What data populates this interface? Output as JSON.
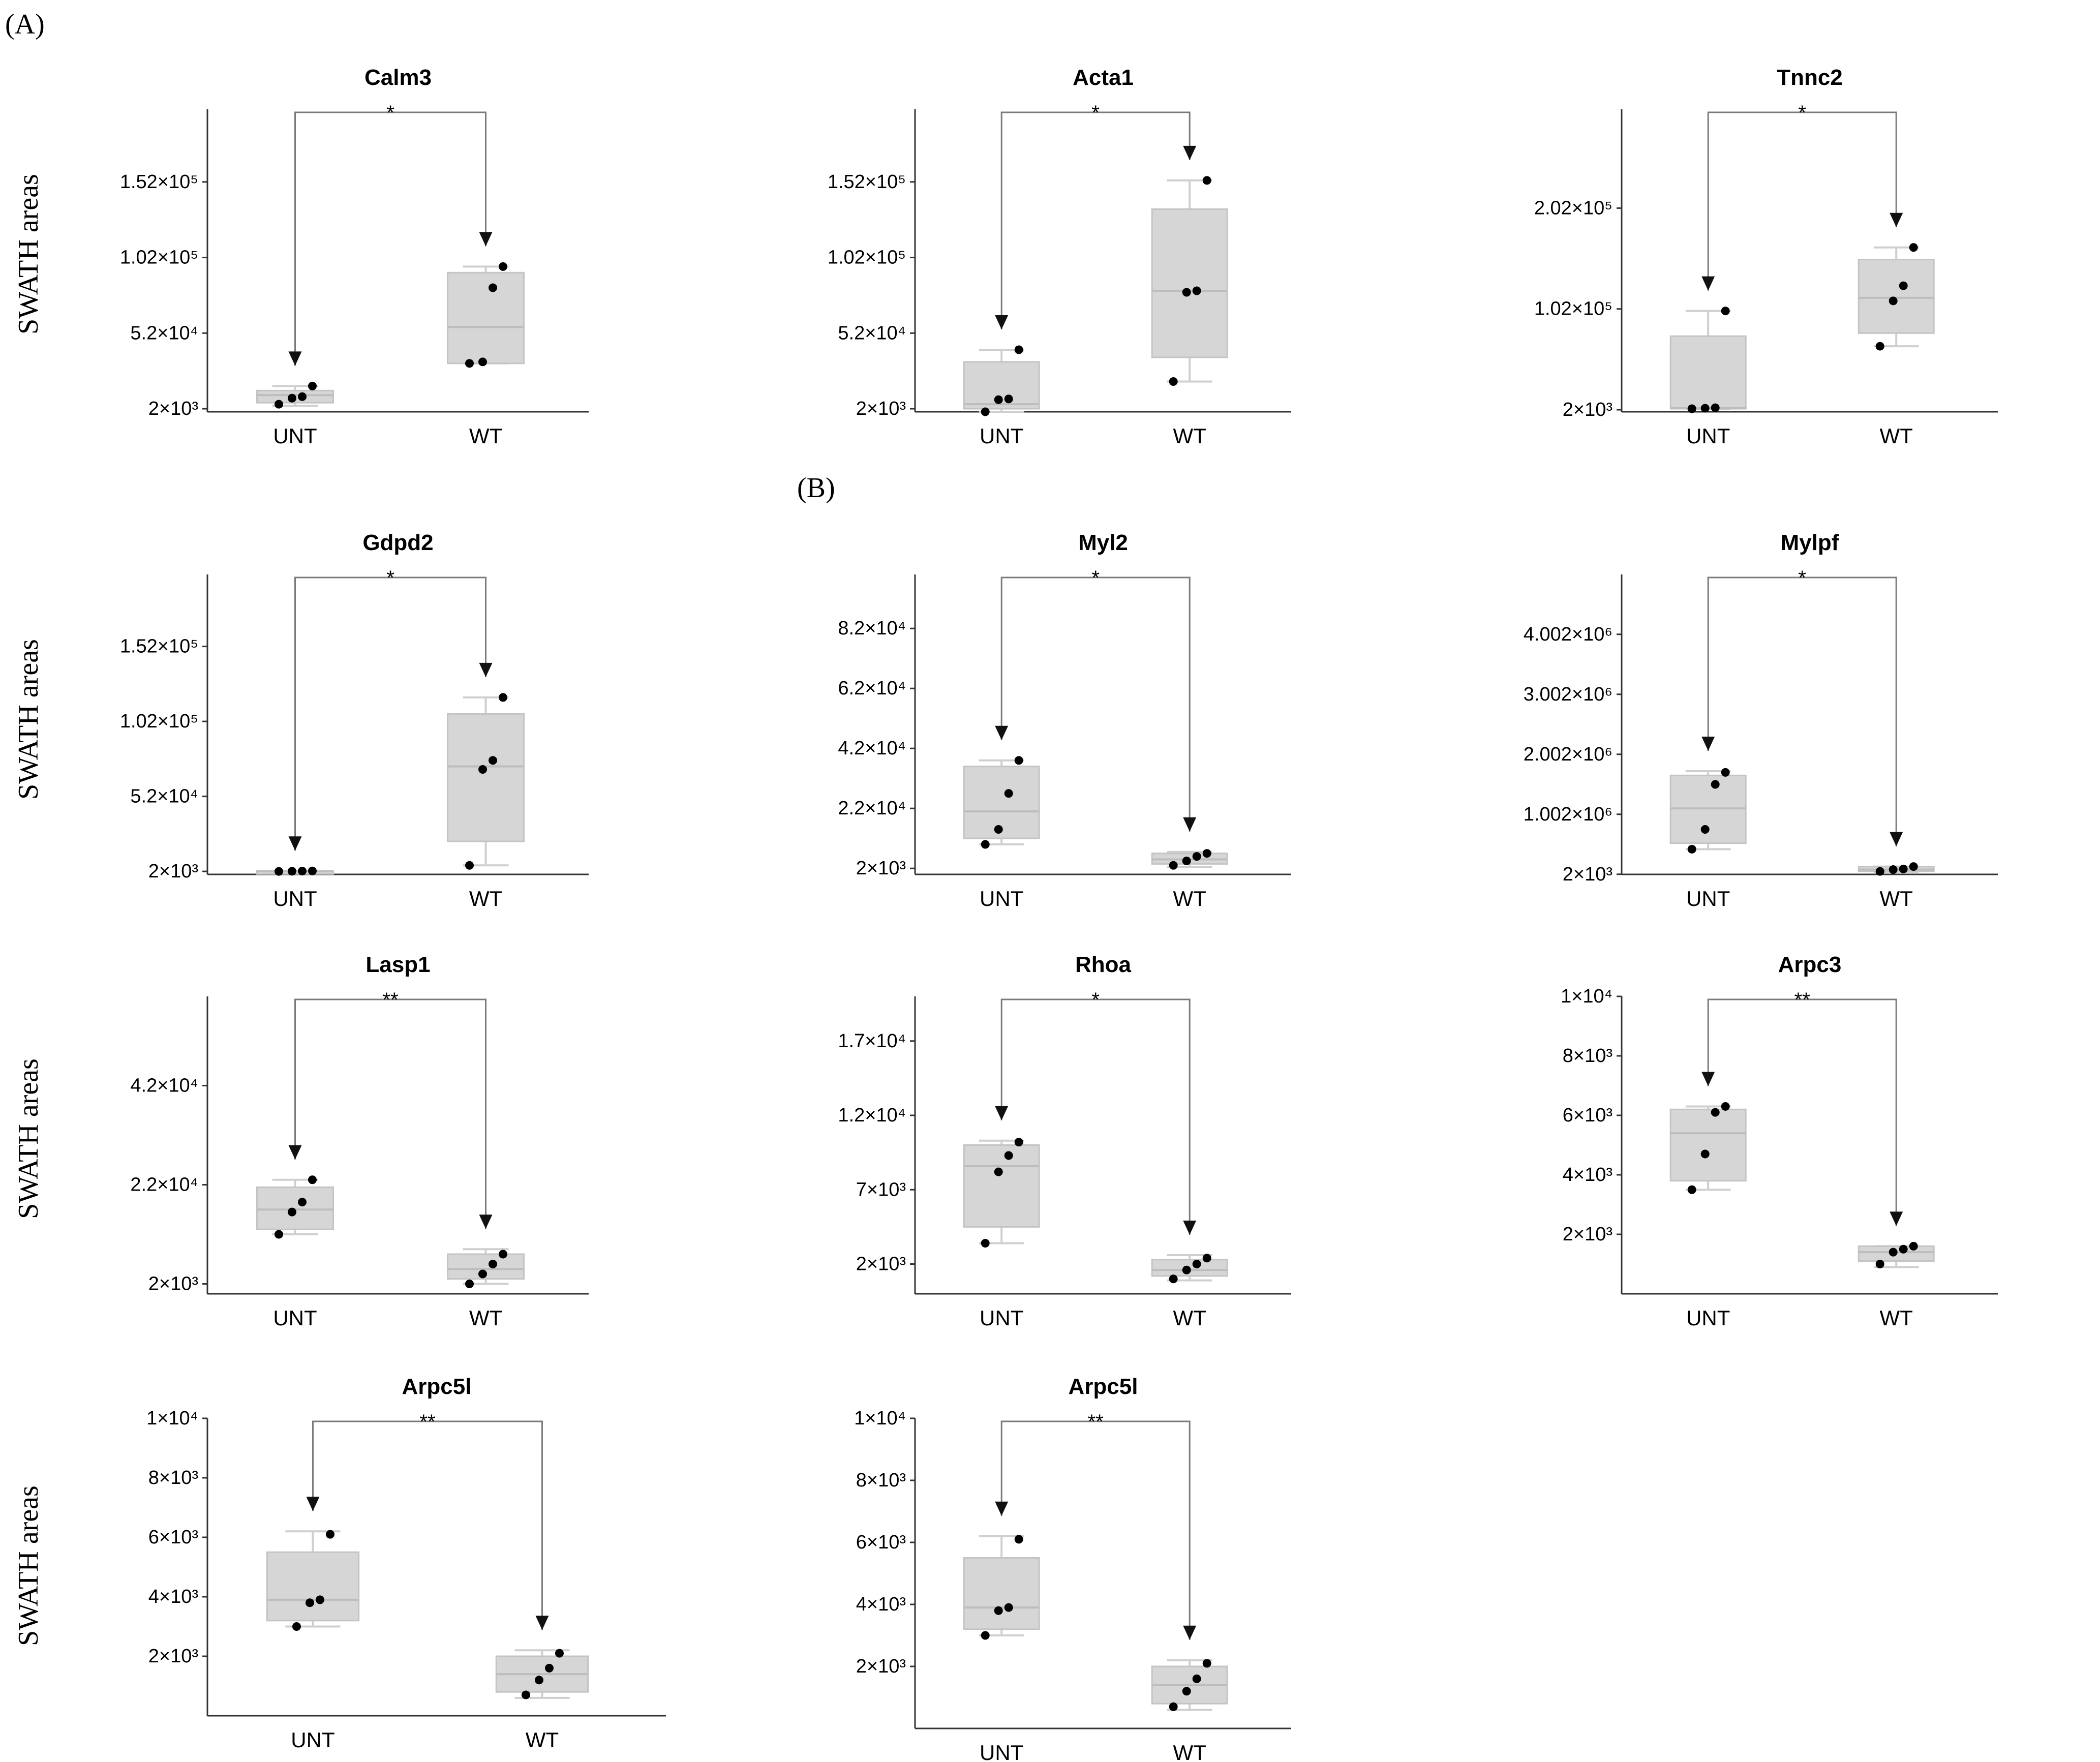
{
  "figure": {
    "panel_labels": [
      "(A)",
      "(B)"
    ],
    "row_ylabels": [
      "SWATH areas",
      "SWATH areas",
      "SWATH areas",
      "SWATH areas"
    ]
  },
  "chart_data": [
    {
      "type": "box",
      "title": "Calm3",
      "significance": "*",
      "categories": [
        "UNT",
        "WT"
      ],
      "ylabel": "SWATH areas",
      "ylim": [
        0,
        200000
      ],
      "yticks": [
        2000,
        52000,
        102000,
        152000
      ],
      "ytick_labels": [
        "2×10³",
        "5.2×10⁴",
        "1.02×10⁵",
        "1.52×10⁵"
      ],
      "series": [
        {
          "name": "UNT",
          "points": [
            5000,
            9000,
            10000,
            17000
          ],
          "q1": 6000,
          "median": 11000,
          "q3": 14000,
          "whisker_low": 4000,
          "whisker_high": 17000
        },
        {
          "name": "WT",
          "points": [
            32000,
            33000,
            82000,
            96000
          ],
          "q1": 32000,
          "median": 56000,
          "q3": 92000,
          "whisker_low": 32000,
          "whisker_high": 96000
        }
      ]
    },
    {
      "type": "box",
      "title": "Acta1",
      "significance": "*",
      "categories": [
        "UNT",
        "WT"
      ],
      "ylabel": "SWATH areas",
      "ylim": [
        0,
        200000
      ],
      "yticks": [
        2000,
        52000,
        102000,
        152000
      ],
      "ytick_labels": [
        "2×10³",
        "5.2×10⁴",
        "1.02×10⁵",
        "1.52×10⁵"
      ],
      "series": [
        {
          "name": "UNT",
          "points": [
            0,
            8000,
            8500,
            41000
          ],
          "q1": 2000,
          "median": 5000,
          "q3": 33000,
          "whisker_low": 0,
          "whisker_high": 41000
        },
        {
          "name": "WT",
          "points": [
            20000,
            79000,
            80000,
            153000
          ],
          "q1": 36000,
          "median": 80000,
          "q3": 134000,
          "whisker_low": 20000,
          "whisker_high": 153000
        }
      ]
    },
    {
      "type": "box",
      "title": "Tnnc2",
      "significance": "*",
      "categories": [
        "UNT",
        "WT"
      ],
      "ylabel": "SWATH areas",
      "ylim": [
        0,
        300000
      ],
      "yticks": [
        2000,
        102000,
        202000
      ],
      "ytick_labels": [
        "2×10³",
        "1.02×10⁵",
        "2.02×10⁵"
      ],
      "series": [
        {
          "name": "UNT",
          "points": [
            3000,
            3500,
            4000,
            100000
          ],
          "q1": 3000,
          "median": 3500,
          "q3": 75000,
          "whisker_low": 3000,
          "whisker_high": 100000
        },
        {
          "name": "WT",
          "points": [
            65000,
            110000,
            125000,
            163000
          ],
          "q1": 78000,
          "median": 113000,
          "q3": 151000,
          "whisker_low": 65000,
          "whisker_high": 163000
        }
      ]
    },
    {
      "type": "box",
      "title": "Gdpd2",
      "significance": "*",
      "categories": [
        "UNT",
        "WT"
      ],
      "ylabel": "SWATH areas",
      "ylim": [
        0,
        200000
      ],
      "yticks": [
        2000,
        52000,
        102000,
        152000
      ],
      "ytick_labels": [
        "2×10³",
        "5.2×10⁴",
        "1.02×10⁵",
        "1.52×10⁵"
      ],
      "series": [
        {
          "name": "UNT",
          "points": [
            2000,
            2100,
            2200,
            2300
          ],
          "q1": 2000,
          "median": 2100,
          "q3": 2300,
          "whisker_low": 2000,
          "whisker_high": 2300
        },
        {
          "name": "WT",
          "points": [
            6000,
            70000,
            76000,
            118000
          ],
          "q1": 22000,
          "median": 72000,
          "q3": 107000,
          "whisker_low": 6000,
          "whisker_high": 118000
        }
      ]
    },
    {
      "type": "box",
      "title": "Myl2",
      "significance": "*",
      "categories": [
        "UNT",
        "WT"
      ],
      "ylabel": "SWATH areas",
      "ylim": [
        0,
        100000
      ],
      "yticks": [
        2000,
        22000,
        42000,
        62000,
        82000
      ],
      "ytick_labels": [
        "2×10³",
        "2.2×10⁴",
        "4.2×10⁴",
        "6.2×10⁴",
        "8.2×10⁴"
      ],
      "series": [
        {
          "name": "UNT",
          "points": [
            10000,
            15000,
            27000,
            38000
          ],
          "q1": 12000,
          "median": 21000,
          "q3": 36000,
          "whisker_low": 10000,
          "whisker_high": 38000
        },
        {
          "name": "WT",
          "points": [
            3000,
            4500,
            6000,
            7000
          ],
          "q1": 3500,
          "median": 5000,
          "q3": 7000,
          "whisker_low": 2500,
          "whisker_high": 7500
        }
      ]
    },
    {
      "type": "box",
      "title": "Mylpf",
      "significance": "*",
      "categories": [
        "UNT",
        "WT"
      ],
      "ylabel": "SWATH areas",
      "ylim": [
        0,
        5000000
      ],
      "yticks": [
        2000,
        1002000,
        2002000,
        3002000,
        4002000
      ],
      "ytick_labels": [
        "2×10³",
        "1.002×10⁶",
        "2.002×10⁶",
        "3.002×10⁶",
        "4.002×10⁶"
      ],
      "series": [
        {
          "name": "UNT",
          "points": [
            420000,
            750000,
            1500000,
            1700000
          ],
          "q1": 520000,
          "median": 1100000,
          "q3": 1650000,
          "whisker_low": 420000,
          "whisker_high": 1720000
        },
        {
          "name": "WT",
          "points": [
            50000,
            80000,
            90000,
            130000
          ],
          "q1": 50000,
          "median": 80000,
          "q3": 130000,
          "whisker_low": 40000,
          "whisker_high": 130000
        }
      ]
    },
    {
      "type": "box",
      "title": "Lasp1",
      "significance": "**",
      "categories": [
        "UNT",
        "WT"
      ],
      "ylabel": "SWATH areas",
      "ylim": [
        0,
        60000
      ],
      "yticks": [
        2000,
        22000,
        42000
      ],
      "ytick_labels": [
        "2×10³",
        "2.2×10⁴",
        "4.2×10⁴"
      ],
      "series": [
        {
          "name": "UNT",
          "points": [
            12000,
            16500,
            18500,
            23000
          ],
          "q1": 13000,
          "median": 17000,
          "q3": 21500,
          "whisker_low": 12000,
          "whisker_high": 23000
        },
        {
          "name": "WT",
          "points": [
            2000,
            4000,
            6000,
            8000
          ],
          "q1": 3000,
          "median": 5000,
          "q3": 8000,
          "whisker_low": 2000,
          "whisker_high": 9000
        }
      ]
    },
    {
      "type": "box",
      "title": "Rhoa",
      "significance": "*",
      "categories": [
        "UNT",
        "WT"
      ],
      "ylabel": "SWATH areas",
      "ylim": [
        0,
        20000
      ],
      "yticks": [
        2000,
        7000,
        12000,
        17000
      ],
      "ytick_labels": [
        "2×10³",
        "7×10³",
        "1.2×10⁴",
        "1.7×10⁴"
      ],
      "series": [
        {
          "name": "UNT",
          "points": [
            3400,
            8200,
            9300,
            10200
          ],
          "q1": 4500,
          "median": 8600,
          "q3": 10000,
          "whisker_low": 3400,
          "whisker_high": 10300
        },
        {
          "name": "WT",
          "points": [
            1000,
            1600,
            2000,
            2400
          ],
          "q1": 1200,
          "median": 1600,
          "q3": 2300,
          "whisker_low": 900,
          "whisker_high": 2600
        }
      ]
    },
    {
      "type": "box",
      "title": "Arpc3",
      "significance": "**",
      "categories": [
        "UNT",
        "WT"
      ],
      "ylabel": "SWATH areas",
      "ylim": [
        0,
        10000
      ],
      "yticks": [
        2000,
        4000,
        6000,
        8000,
        10000
      ],
      "ytick_labels": [
        "2×10³",
        "4×10³",
        "6×10³",
        "8×10³",
        "1×10⁴"
      ],
      "series": [
        {
          "name": "UNT",
          "points": [
            3500,
            4700,
            6100,
            6300
          ],
          "q1": 3800,
          "median": 5400,
          "q3": 6200,
          "whisker_low": 3500,
          "whisker_high": 6300
        },
        {
          "name": "WT",
          "points": [
            1000,
            1400,
            1500,
            1600
          ],
          "q1": 1100,
          "median": 1400,
          "q3": 1600,
          "whisker_low": 900,
          "whisker_high": 1600
        }
      ]
    },
    {
      "type": "box",
      "title": "Arpc5l",
      "significance": "**",
      "categories": [
        "UNT",
        "WT"
      ],
      "ylabel": "SWATH areas",
      "ylim": [
        0,
        10000
      ],
      "yticks": [
        2000,
        4000,
        6000,
        8000,
        10000
      ],
      "ytick_labels": [
        "2×10³",
        "4×10³",
        "6×10³",
        "8×10³",
        "1×10⁴"
      ],
      "series": [
        {
          "name": "UNT",
          "points": [
            3000,
            3800,
            3900,
            6100
          ],
          "q1": 3200,
          "median": 3900,
          "q3": 5500,
          "whisker_low": 3000,
          "whisker_high": 6200
        },
        {
          "name": "WT",
          "points": [
            700,
            1200,
            1600,
            2100
          ],
          "q1": 800,
          "median": 1400,
          "q3": 2000,
          "whisker_low": 600,
          "whisker_high": 2200
        }
      ]
    },
    {
      "type": "box",
      "title": "Arpc5l",
      "significance": "**",
      "categories": [
        "UNT",
        "WT"
      ],
      "ylabel": "SWATH areas",
      "ylim": [
        0,
        10000
      ],
      "yticks": [
        2000,
        4000,
        6000,
        8000,
        10000
      ],
      "ytick_labels": [
        "2×10³",
        "4×10³",
        "6×10³",
        "8×10³",
        "1×10⁴"
      ],
      "series": [
        {
          "name": "UNT",
          "points": [
            3000,
            3800,
            3900,
            6100
          ],
          "q1": 3200,
          "median": 3900,
          "q3": 5500,
          "whisker_low": 3000,
          "whisker_high": 6200
        },
        {
          "name": "WT",
          "points": [
            700,
            1200,
            1600,
            2100
          ],
          "q1": 800,
          "median": 1400,
          "q3": 2000,
          "whisker_low": 600,
          "whisker_high": 2200
        }
      ]
    }
  ]
}
